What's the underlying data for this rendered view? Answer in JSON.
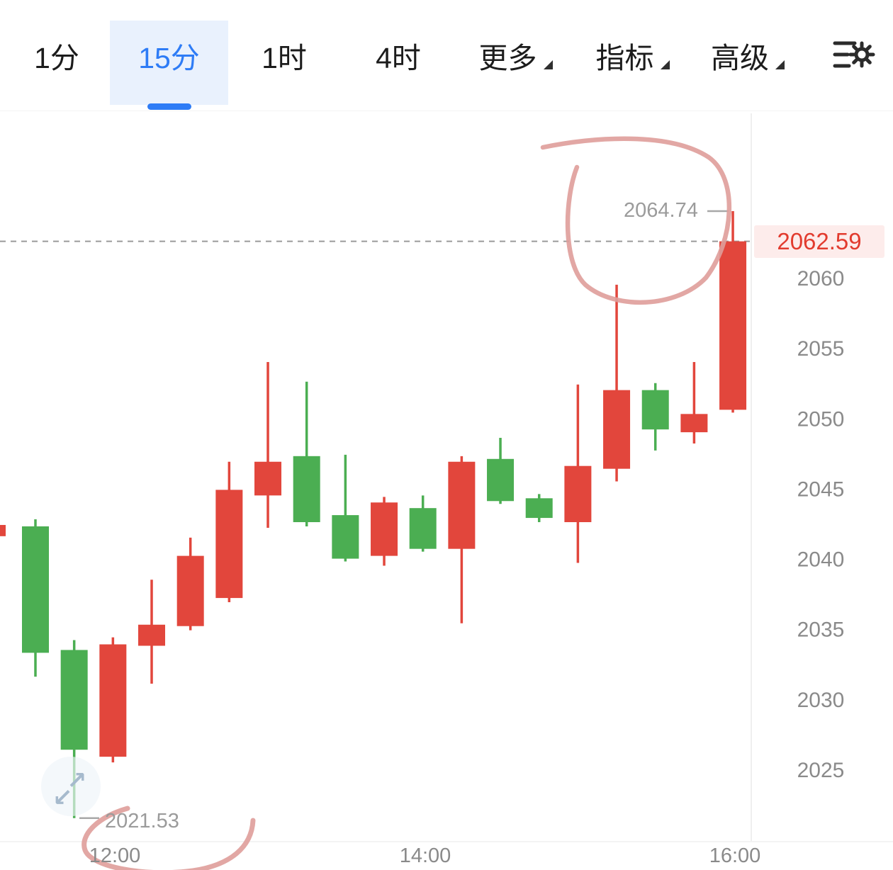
{
  "toolbar": {
    "tabs": [
      {
        "label": "1分",
        "active": false
      },
      {
        "label": "15分",
        "active": true
      },
      {
        "label": "1时",
        "active": false
      },
      {
        "label": "4时",
        "active": false
      }
    ],
    "menus": [
      {
        "label": "更多"
      },
      {
        "label": "指标"
      },
      {
        "label": "高级"
      }
    ],
    "settings_icon": "chart-settings-gear"
  },
  "colors": {
    "bull_red": "#e2463c",
    "bear_green": "#4bae52",
    "accent_blue": "#2e7cf6",
    "tab_active_bg": "#e9f1fd",
    "axis_text": "#8a8a8a",
    "price_tag_bg": "#fdeceb",
    "price_tag_text": "#e23b2e",
    "dashed_line": "#9a9a9a",
    "annotation_ink": "#df9d9a",
    "watermark": "#a6bacd"
  },
  "watermark": {
    "up_right": "↗",
    "down_left": "↙"
  },
  "chart_data": {
    "type": "candlestick",
    "interval": "15分",
    "current_price": "2062.59",
    "high_label": "2064.74",
    "low_label": "2021.53",
    "y_ticks": [
      2060,
      2055,
      2050,
      2045,
      2040,
      2035,
      2030,
      2025
    ],
    "x_ticks": [
      "12:00",
      "14:00",
      "16:00"
    ],
    "ylim": [
      2021,
      2066
    ],
    "grid": false,
    "convention": "red = bullish (close > open), green = bearish",
    "candles": [
      {
        "o": 2042.3,
        "h": 2042.8,
        "l": 2031.6,
        "c": 2033.3
      },
      {
        "o": 2033.5,
        "h": 2034.2,
        "l": 2021.53,
        "c": 2026.4
      },
      {
        "o": 2025.9,
        "h": 2034.4,
        "l": 2025.5,
        "c": 2033.9
      },
      {
        "o": 2033.8,
        "h": 2038.5,
        "l": 2031.1,
        "c": 2035.3
      },
      {
        "o": 2035.2,
        "h": 2041.5,
        "l": 2034.9,
        "c": 2040.2
      },
      {
        "o": 2037.2,
        "h": 2046.9,
        "l": 2036.9,
        "c": 2044.9
      },
      {
        "o": 2044.5,
        "h": 2054.0,
        "l": 2042.2,
        "c": 2046.9
      },
      {
        "o": 2047.3,
        "h": 2052.6,
        "l": 2042.3,
        "c": 2042.6
      },
      {
        "o": 2043.1,
        "h": 2047.4,
        "l": 2039.8,
        "c": 2040.0
      },
      {
        "o": 2040.2,
        "h": 2044.4,
        "l": 2039.5,
        "c": 2044.0
      },
      {
        "o": 2043.6,
        "h": 2044.5,
        "l": 2040.5,
        "c": 2040.7
      },
      {
        "o": 2040.7,
        "h": 2047.3,
        "l": 2035.4,
        "c": 2046.9
      },
      {
        "o": 2047.1,
        "h": 2048.6,
        "l": 2043.9,
        "c": 2044.1
      },
      {
        "o": 2044.3,
        "h": 2044.6,
        "l": 2042.6,
        "c": 2042.9
      },
      {
        "o": 2042.6,
        "h": 2052.4,
        "l": 2039.7,
        "c": 2046.6
      },
      {
        "o": 2046.4,
        "h": 2059.5,
        "l": 2045.5,
        "c": 2052.0
      },
      {
        "o": 2052.0,
        "h": 2052.5,
        "l": 2047.7,
        "c": 2049.2
      },
      {
        "o": 2049.0,
        "h": 2054.0,
        "l": 2048.2,
        "c": 2050.3
      },
      {
        "o": 2050.6,
        "h": 2064.74,
        "l": 2050.4,
        "c": 2062.59
      }
    ],
    "left_edge_stub": {
      "top": 2042.4,
      "bottom": 2041.6
    },
    "hand_drawn_annotations": [
      "circle-around-last-candle-high",
      "circle-around-session-low"
    ]
  }
}
